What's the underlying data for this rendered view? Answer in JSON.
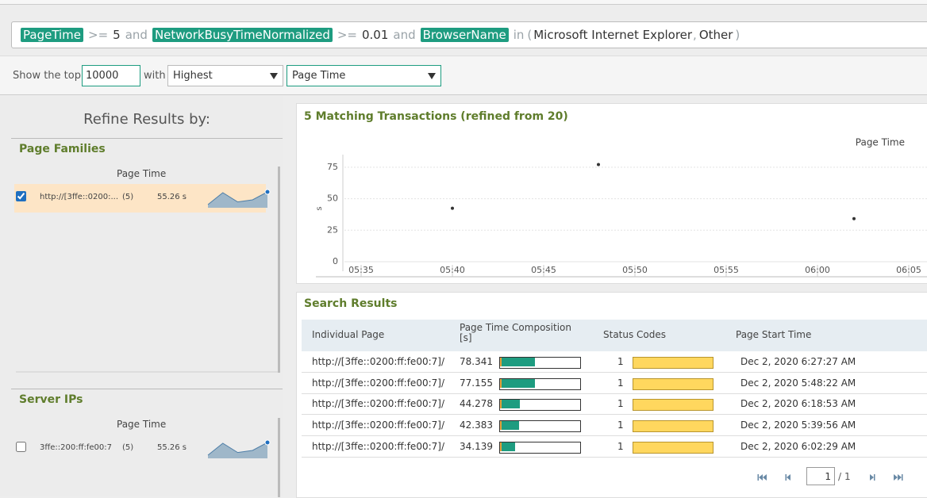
{
  "query": {
    "clauses": [
      {
        "field": "PageTime",
        "operator": ">=",
        "value": "5"
      },
      {
        "field": "NetworkBusyTimeNormalized",
        "operator": ">=",
        "value": "0.01"
      },
      {
        "field": "BrowserName",
        "operator": "in",
        "open": "(",
        "values": [
          "Microsoft Internet Explorer",
          "Other"
        ],
        "separator": ",",
        "close": ")"
      }
    ],
    "conjunction": "and"
  },
  "toolbar": {
    "prefix": "Show the top",
    "count": "10000",
    "joiner": "with",
    "order": "Highest",
    "metric": "Page Time"
  },
  "refine": {
    "title": "Refine Results by:",
    "sections": [
      {
        "title": "Page Families",
        "column": "Page Time",
        "items": [
          {
            "checked": true,
            "label": "http://[3ffe::0200:...",
            "count": "(5)",
            "value": "55.26 s",
            "sparkline": [
              30,
              75,
              40,
              48,
              78
            ]
          }
        ]
      },
      {
        "title": "Server IPs",
        "column": "Page Time",
        "items": [
          {
            "checked": false,
            "label": "3ffe::200:ff:fe00:7",
            "count": "(5)",
            "value": "55.26 s",
            "sparkline": [
              30,
              75,
              40,
              48,
              78
            ]
          }
        ]
      }
    ]
  },
  "chart_data": {
    "type": "scatter",
    "title": "5 Matching Transactions (refined from 20)",
    "ylabel": "s",
    "x": [
      "05:40",
      "05:48",
      "06:02"
    ],
    "series": [
      {
        "name": "Page Time",
        "color": "#333333",
        "values": [
          42.383,
          77.155,
          34.139
        ]
      }
    ],
    "xlim": [
      "05:33",
      "06:06"
    ],
    "xticks": [
      "05:35",
      "05:40",
      "05:45",
      "05:50",
      "05:55",
      "06:00",
      "06:05"
    ],
    "ylim": [
      0,
      85
    ],
    "yticks": [
      0,
      25,
      50,
      75
    ],
    "grid": true
  },
  "results": {
    "title": "Search Results",
    "columns": [
      "Individual Page",
      "Page Time Composition [s]",
      "Status Codes",
      "Page Start Time"
    ],
    "composition_lim": [
      0,
      175
    ],
    "rows": [
      [
        "http://[3ffe::0200:ff:fe00:7]/",
        78.341,
        1,
        "Dec 2, 2020 6:27:27 AM"
      ],
      [
        "http://[3ffe::0200:ff:fe00:7]/",
        77.155,
        1,
        "Dec 2, 2020 5:48:22 AM"
      ],
      [
        "http://[3ffe::0200:ff:fe00:7]/",
        44.278,
        1,
        "Dec 2, 2020 6:18:53 AM"
      ],
      [
        "http://[3ffe::0200:ff:fe00:7]/",
        42.383,
        1,
        "Dec 2, 2020 5:39:56 AM"
      ],
      [
        "http://[3ffe::0200:ff:fe00:7]/",
        34.139,
        1,
        "Dec 2, 2020 6:02:29 AM"
      ]
    ]
  },
  "pagination": {
    "page": 1,
    "separator": "/",
    "total": 1
  }
}
